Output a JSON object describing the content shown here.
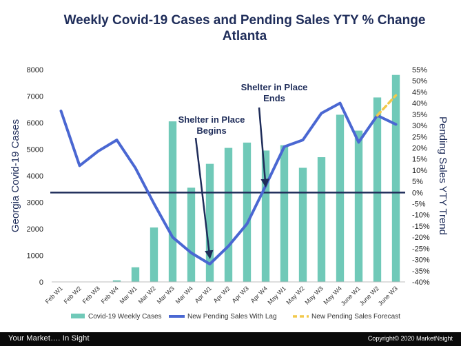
{
  "slide": {
    "title_line1": "Weekly Covid-19 Cases and Pending Sales YTY % Change",
    "title_line2": "Atlanta",
    "footer_tagline": "Your Market….  In Sight",
    "footer_copyright": "Copyright© 2020 MarketNsight"
  },
  "chart_data": {
    "type": "bar",
    "categories": [
      "Feb W1",
      "Feb W2",
      "Feb W3",
      "Feb W4",
      "Mar W1",
      "Mar W2",
      "Mar W3",
      "Mar W4",
      "Apr W1",
      "Apr W2",
      "Apr W3",
      "Apr W4",
      "May W1",
      "May W2",
      "May W3",
      "May W4",
      "June W1",
      "June W2",
      "June W3"
    ],
    "y_left": {
      "label": "Georgia Covid-19 Cases",
      "range": [
        0,
        8000
      ],
      "ticks": [
        "0",
        "1000",
        "2000",
        "3000",
        "4000",
        "5000",
        "6000",
        "7000",
        "8000"
      ]
    },
    "y_right": {
      "label": "Pending Sales YTY  Trend",
      "range": [
        -40,
        55
      ],
      "ticks": [
        "-40%",
        "-35%",
        "-30%",
        "-25%",
        "-20%",
        "-15%",
        "-10%",
        "-5%",
        "0%",
        "5%",
        "10%",
        "15%",
        "20%",
        "25%",
        "30%",
        "35%",
        "40%",
        "45%",
        "50%",
        "55%"
      ]
    },
    "series": [
      {
        "name": "Covid-19 Weekly Cases",
        "type": "bar",
        "axis": "left",
        "color": "#70c9b8",
        "values": [
          0,
          0,
          10,
          60,
          550,
          2050,
          6050,
          3550,
          4450,
          5050,
          5250,
          4950,
          5150,
          4300,
          4700,
          6300,
          5700,
          6950,
          7800
        ]
      },
      {
        "name": "New Pending Sales With Lag",
        "type": "line",
        "axis": "right",
        "color": "#4a67d2",
        "values": [
          36.5,
          12,
          18.5,
          23.5,
          11,
          -5,
          -20,
          -27,
          -32,
          -24,
          -14,
          3,
          20.5,
          23.5,
          35.5,
          40,
          22.5,
          34.5,
          30.5
        ]
      },
      {
        "name": "New Pending Sales Forecast",
        "type": "line",
        "axis": "right",
        "color": "#f2c94c",
        "dashed": true,
        "points": [
          [
            17,
            34.5
          ],
          [
            18,
            43.5
          ]
        ]
      }
    ],
    "reference_line": {
      "axis": "right",
      "value": 0,
      "color": "#1f2d5a"
    },
    "annotations": [
      {
        "text": [
          "Shelter in Place",
          "Begins"
        ],
        "arrow_to": [
          8,
          -29
        ]
      },
      {
        "text": [
          "Shelter in Place",
          "Ends"
        ],
        "arrow_to": [
          11,
          3
        ]
      }
    ],
    "legend_position": "bottom",
    "grid": false
  }
}
